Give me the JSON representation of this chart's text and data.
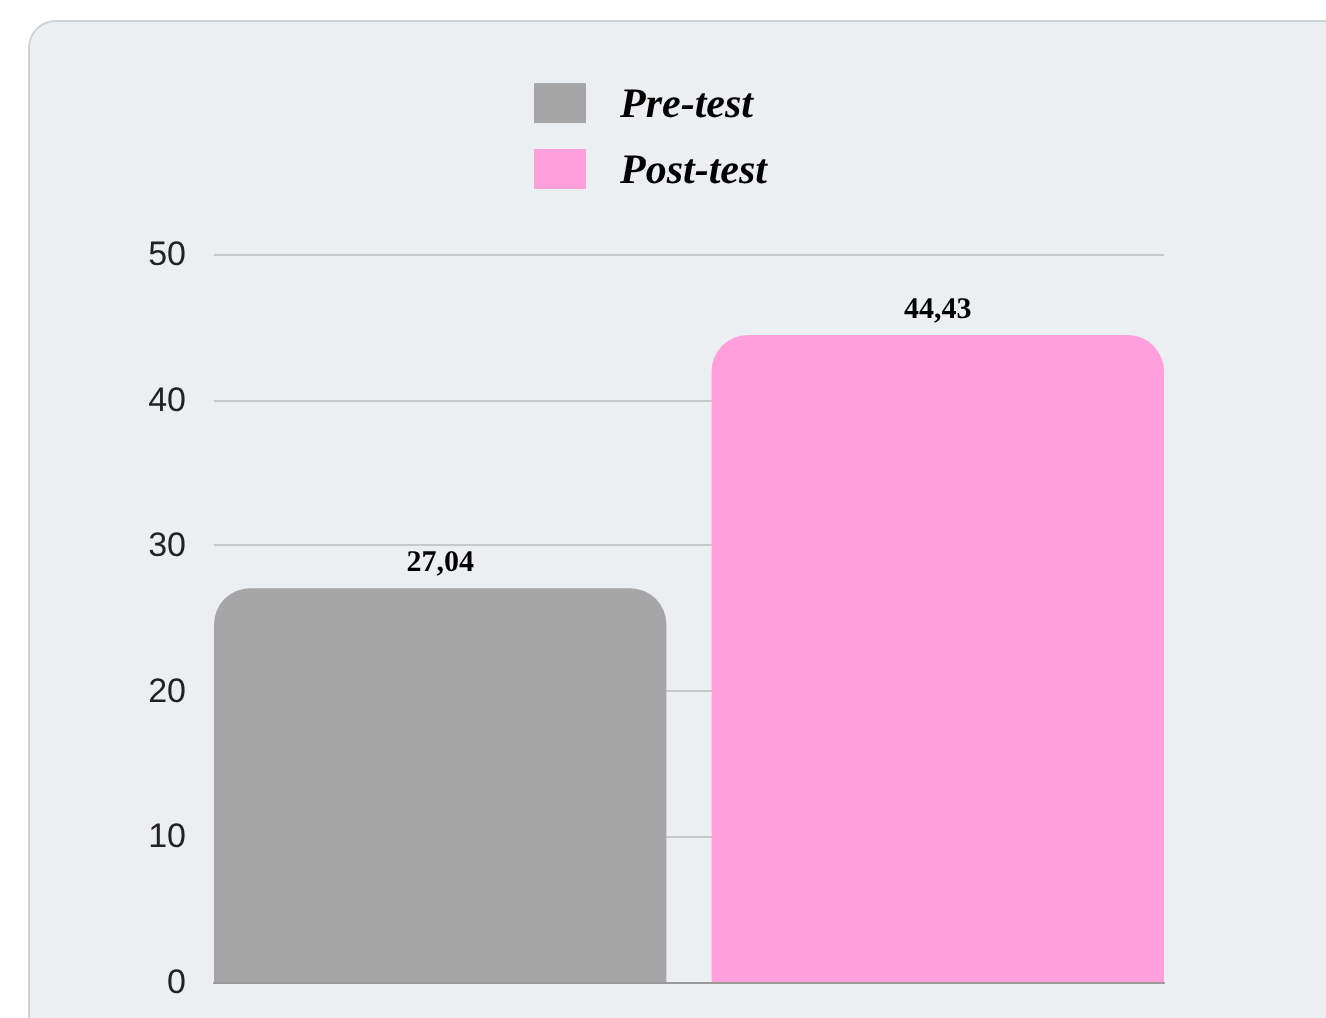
{
  "chart_data": {
    "type": "bar",
    "categories": [
      null
    ],
    "series": [
      {
        "name": "Pre-test",
        "color": "#a6a6a6",
        "values": [
          27.04
        ],
        "value_labels": [
          "27,04"
        ]
      },
      {
        "name": "Post-test",
        "color": "#ffa0dc",
        "values": [
          44.43
        ],
        "value_labels": [
          "44,43"
        ]
      }
    ],
    "ylim": [
      0,
      50
    ],
    "yticks": [
      0,
      10,
      20,
      30,
      40,
      50
    ],
    "grid": "y",
    "legend": "top"
  }
}
